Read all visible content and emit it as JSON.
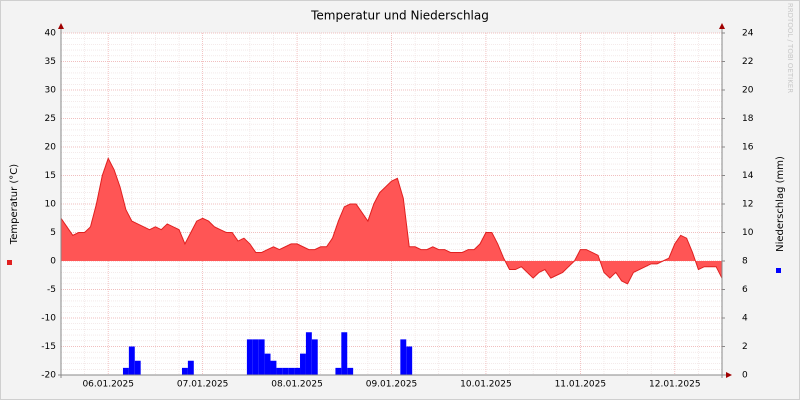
{
  "chart_data": {
    "type": "area-bar",
    "title": "Temperatur und Niederschlag",
    "watermark": "RRDTOOL / TOBI OETIKER",
    "categories": [
      null,
      null,
      null,
      null,
      null,
      null,
      null,
      null,
      "06.01.2025",
      null,
      null,
      null,
      null,
      null,
      null,
      null,
      null,
      null,
      null,
      null,
      null,
      null,
      null,
      null,
      "07.01.2025",
      null,
      null,
      null,
      null,
      null,
      null,
      null,
      null,
      null,
      null,
      null,
      null,
      null,
      null,
      null,
      "08.01.2025",
      null,
      null,
      null,
      null,
      null,
      null,
      null,
      null,
      null,
      null,
      null,
      null,
      null,
      null,
      null,
      "09.01.2025",
      null,
      null,
      null,
      null,
      null,
      null,
      null,
      null,
      null,
      null,
      null,
      null,
      null,
      null,
      null,
      "10.01.2025",
      null,
      null,
      null,
      null,
      null,
      null,
      null,
      null,
      null,
      null,
      null,
      null,
      null,
      null,
      null,
      "11.01.2025",
      null,
      null,
      null,
      null,
      null,
      null,
      null,
      null,
      null,
      null,
      null,
      null,
      null,
      null,
      null,
      "12.01.2025",
      null,
      null,
      null,
      null,
      null,
      null,
      null,
      null
    ],
    "series": [
      {
        "name": "Temperatur (°C)",
        "color": "#ff5555",
        "line_color": "#e02020",
        "kind": "area",
        "values": [
          7.5,
          6,
          4.5,
          5,
          5,
          6,
          10,
          15,
          18,
          16,
          13,
          9,
          7,
          6.5,
          6,
          5.5,
          6,
          5.5,
          6.5,
          6,
          5.5,
          3,
          5,
          7,
          7.5,
          7,
          6,
          5.5,
          5,
          5,
          3.5,
          4,
          3,
          1.5,
          1.5,
          2,
          2.5,
          2,
          2.5,
          3,
          3,
          2.5,
          2,
          2,
          2.5,
          2.5,
          4,
          7,
          9.5,
          10,
          10,
          8.5,
          7,
          10,
          12,
          13,
          14,
          14.5,
          11,
          2.5,
          2.5,
          2,
          2,
          2.5,
          2,
          2,
          1.5,
          1.5,
          1.5,
          2,
          2,
          3,
          5,
          5,
          3,
          0.5,
          -1.5,
          -1.5,
          -1,
          -2,
          -3,
          -2,
          -1.5,
          -3,
          -2.5,
          -2,
          -1,
          0,
          2,
          2,
          1.5,
          1,
          -2,
          -3,
          -2,
          -3.5,
          -4,
          -2,
          -1.5,
          -1,
          -0.5,
          -0.5,
          0,
          0.5,
          3,
          4.5,
          4,
          1.5,
          -1.5,
          -1,
          -1,
          -1,
          -3
        ]
      },
      {
        "name": "Niederschlag (mm)",
        "color": "#0000ff",
        "kind": "bar",
        "axis": "y2",
        "values": [
          0,
          0,
          0,
          0,
          0,
          0,
          0,
          0,
          0,
          0,
          0,
          0.5,
          2,
          1,
          0,
          0,
          0,
          0,
          0,
          0,
          0,
          0.5,
          1,
          0,
          0,
          0,
          0,
          0,
          0,
          0,
          0,
          0,
          2.5,
          2.5,
          2.5,
          1.5,
          1,
          0.5,
          0.5,
          0.5,
          0.5,
          1.5,
          3,
          2.5,
          0,
          0,
          0,
          0.5,
          3,
          0.5,
          0,
          0,
          0,
          0,
          0,
          0,
          0,
          0,
          2.5,
          2,
          0,
          0,
          0,
          0,
          0,
          0,
          0,
          0,
          0,
          0,
          0,
          0,
          0,
          0,
          0,
          0,
          0,
          0,
          0,
          0,
          0,
          0,
          0,
          0,
          0,
          0,
          0,
          0,
          0,
          0,
          0,
          0,
          0,
          0,
          0,
          0,
          0,
          0,
          0,
          0,
          0,
          0,
          0,
          0,
          0,
          0,
          0,
          0,
          0,
          0,
          0,
          0,
          0
        ]
      }
    ],
    "ylim": [
      -20,
      40
    ],
    "yticks": [
      -20,
      -15,
      -10,
      -5,
      0,
      5,
      10,
      15,
      20,
      25,
      30,
      35,
      40
    ],
    "y2lim": [
      0,
      24
    ],
    "y2ticks": [
      0,
      2,
      4,
      6,
      8,
      10,
      12,
      14,
      16,
      18,
      20,
      22,
      24
    ],
    "grid": true
  }
}
